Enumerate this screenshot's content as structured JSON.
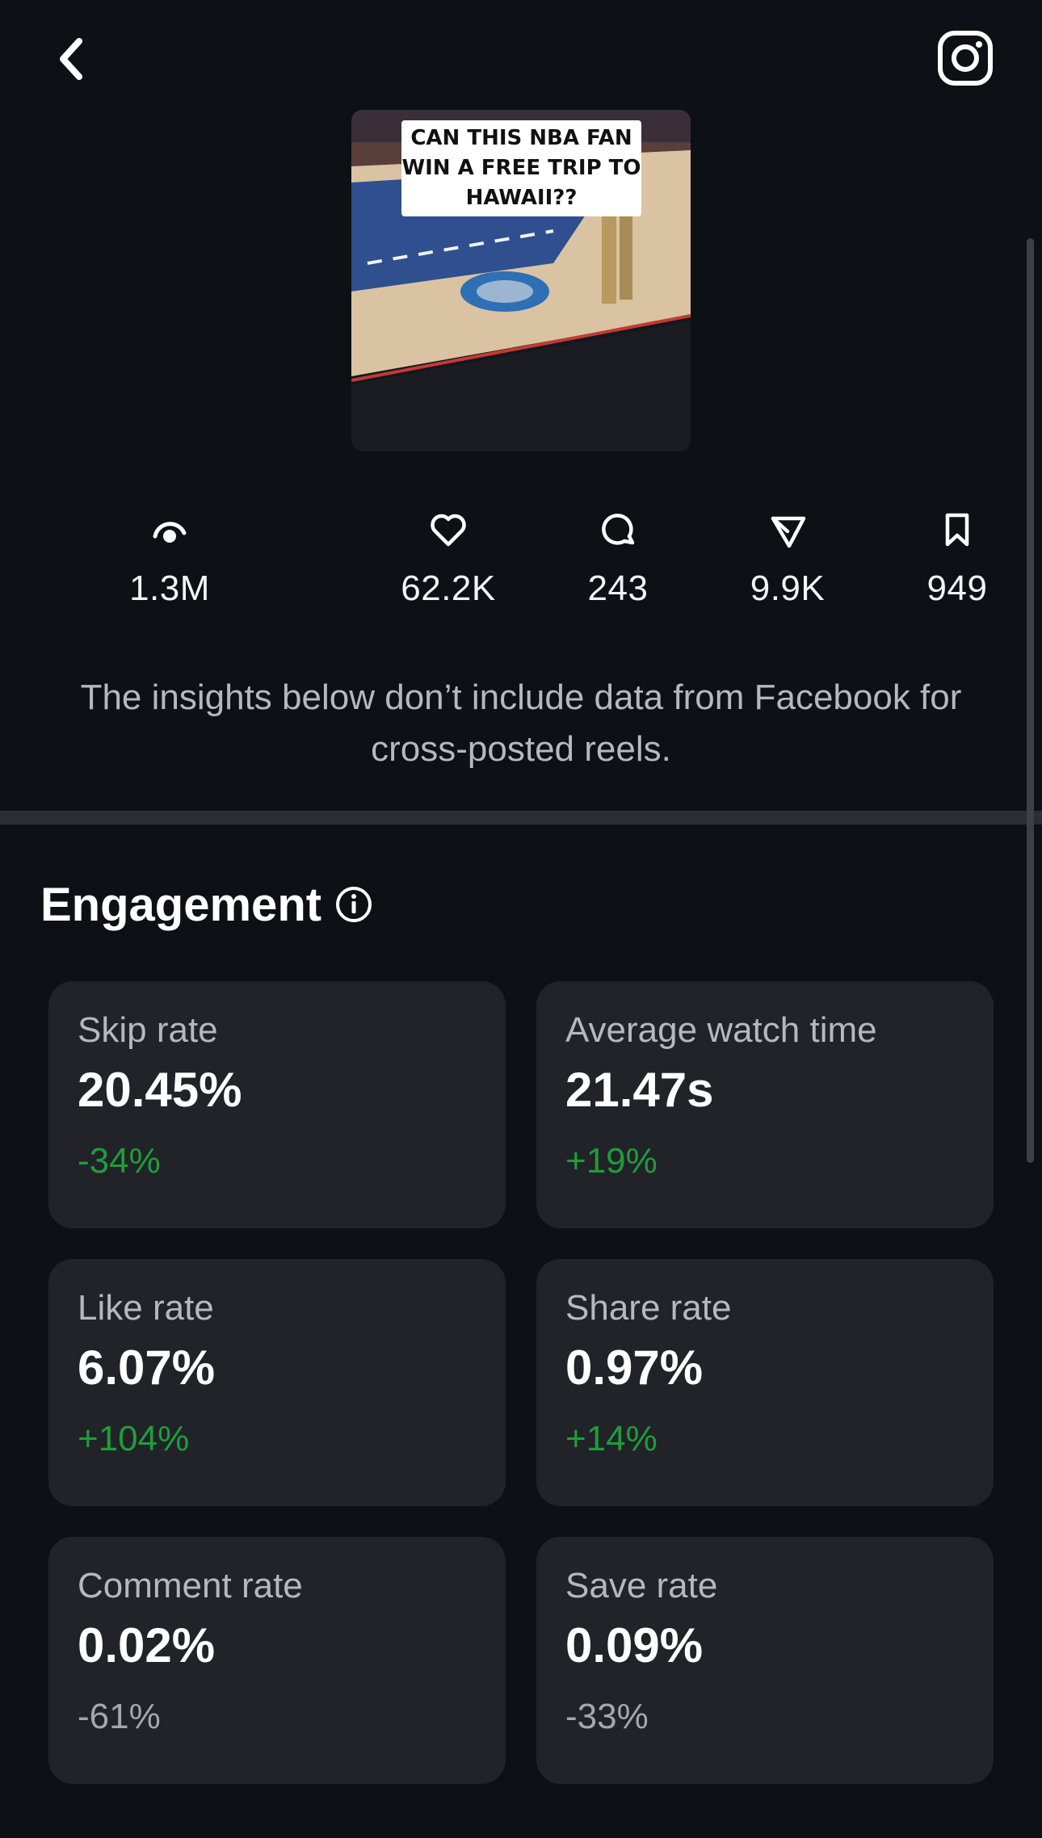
{
  "header": {
    "back_icon": "chevron-left-icon",
    "instagram_icon": "instagram-icon"
  },
  "reel": {
    "thumbnail_caption": "CAN THIS NBA FAN WIN A FREE TRIP TO HAWAII??"
  },
  "stats": [
    {
      "icon": "views-icon",
      "value": "1.3M"
    },
    {
      "icon": "heart-icon",
      "value": "62.2K"
    },
    {
      "icon": "comment-icon",
      "value": "243"
    },
    {
      "icon": "share-icon",
      "value": "9.9K"
    },
    {
      "icon": "bookmark-icon",
      "value": "949"
    }
  ],
  "notice": "The insights below don’t include data from Facebook for cross-posted reels.",
  "engagement": {
    "title": "Engagement",
    "info_icon": "info-icon",
    "cards": [
      {
        "label": "Skip rate",
        "value": "20.45%",
        "change": "-34%",
        "change_color": "#1f9d3a"
      },
      {
        "label": "Average watch time",
        "value": "21.47s",
        "change": "+19%",
        "change_color": "#1f9d3a"
      },
      {
        "label": "Like rate",
        "value": "6.07%",
        "change": "+104%",
        "change_color": "#1f9d3a"
      },
      {
        "label": "Share rate",
        "value": "0.97%",
        "change": "+14%",
        "change_color": "#1f9d3a"
      },
      {
        "label": "Comment rate",
        "value": "0.02%",
        "change": "-61%",
        "change_color": "#a3a7ae"
      },
      {
        "label": "Save rate",
        "value": "0.09%",
        "change": "-33%",
        "change_color": "#a3a7ae"
      }
    ]
  },
  "colors": {
    "background": "#0d1015",
    "card": "#212328",
    "positive": "#1f9d3a",
    "neutral": "#a3a7ae"
  }
}
